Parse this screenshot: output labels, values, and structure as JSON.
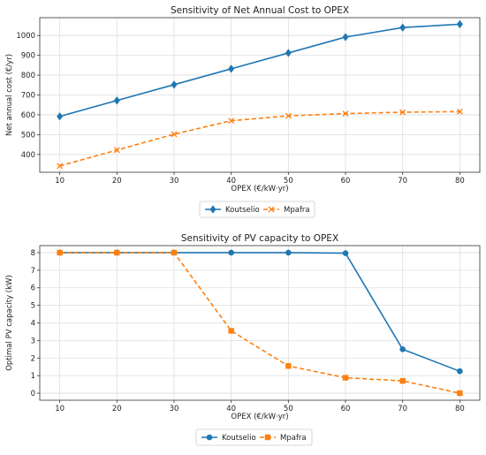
{
  "chart_data": [
    {
      "type": "line",
      "title": "Sensitivity of Net Annual Cost to OPEX",
      "xlabel": "OPEX (€/kW·yr)",
      "ylabel": "Net annual cost (€/yr)",
      "x": [
        10,
        20,
        30,
        40,
        50,
        60,
        70,
        80
      ],
      "xticks": [
        "10",
        "20",
        "30",
        "40",
        "50",
        "60",
        "70",
        "80"
      ],
      "xlim": [
        6.5,
        83.5
      ],
      "ylim": [
        310,
        1090
      ],
      "yticks": [
        400,
        500,
        600,
        700,
        800,
        900,
        1000
      ],
      "grid": true,
      "legend_position": "below",
      "series": [
        {
          "name": "Koutselio",
          "color": "#1f77b4",
          "marker": "diamond",
          "dash": "solid",
          "values": [
            592,
            672,
            752,
            832,
            912,
            992,
            1040,
            1057
          ]
        },
        {
          "name": "Mpafra",
          "color": "#ff7f0e",
          "marker": "x",
          "dash": "dashed",
          "values": [
            342,
            422,
            502,
            570,
            595,
            606,
            613,
            616
          ]
        }
      ]
    },
    {
      "type": "line",
      "title": "Sensitivity of PV capacity to OPEX",
      "xlabel": "OPEX (€/kW·yr)",
      "ylabel": "Optimal PV capacity (kW)",
      "x": [
        10,
        20,
        30,
        40,
        50,
        60,
        70,
        80
      ],
      "xticks": [
        "10",
        "20",
        "30",
        "40",
        "50",
        "60",
        "70",
        "80"
      ],
      "xlim": [
        6.5,
        83.5
      ],
      "ylim": [
        -0.4,
        8.4
      ],
      "yticks": [
        0,
        1,
        2,
        3,
        4,
        5,
        6,
        7,
        8
      ],
      "grid": true,
      "legend_position": "below",
      "series": [
        {
          "name": "Koutselio",
          "color": "#1f77b4",
          "marker": "circle",
          "dash": "solid",
          "values": [
            8.0,
            8.0,
            8.0,
            8.0,
            8.0,
            7.97,
            2.5,
            1.25
          ]
        },
        {
          "name": "Mpafra",
          "color": "#ff7f0e",
          "marker": "square",
          "dash": "dashed",
          "values": [
            8.0,
            8.0,
            8.0,
            3.55,
            1.55,
            0.88,
            0.7,
            0.0
          ]
        }
      ]
    }
  ]
}
